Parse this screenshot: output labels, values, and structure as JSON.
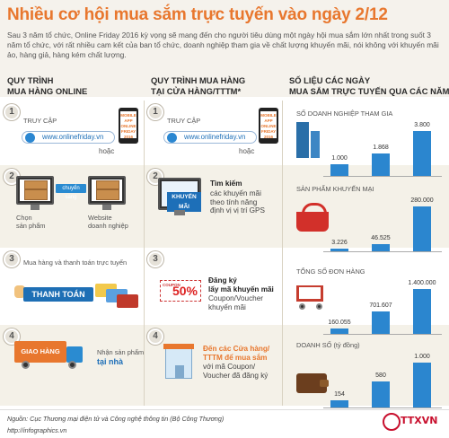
{
  "header": {
    "title": "Nhiều cơ hội mua sắm trực tuyến vào ngày 2/12",
    "intro": "Sau 3 năm tổ chức, Online Friday 2016 kỳ vọng sẽ mang đến cho người tiêu dùng một ngày hội mua sắm lớn nhất trong suốt 3 năm tổ chức, với rất nhiều cam kết của ban tổ chức, doanh nghiệp tham gia về chất lượng khuyến mãi, nói không với khuyến mãi ảo, hàng giả, hàng kém chất lượng."
  },
  "columns": {
    "online": "QUY TRÌNH\nMUA HÀNG ONLINE",
    "store": "QUY TRÌNH MUA HÀNG\nTẠI CỬA HÀNG/TTTM*",
    "stats": "SỐ LIỆU CÁC NGÀY\nMUA SẮM TRỰC TUYẾN QUA CÁC NĂM"
  },
  "steps": {
    "n1": "1",
    "n2": "2",
    "n3": "3",
    "n4": "4",
    "online": {
      "s1_access": "TRUY CẬP",
      "s1_url": "www.onlinefriday.vn",
      "s1_or": "hoặc",
      "s1_phone": "MOBILE APP ONLINE FRIDAY 2016",
      "s2_move": "chuyển sang",
      "s2_left": "Chọn\nsản phẩm",
      "s2_right": "Website\ndoanh nghiệp",
      "s3_label": "Mua hàng và thanh toán trực tuyến",
      "s3_pay": "THANH TOÁN",
      "s4_truck": "GIAO HÀNG",
      "s4_receive": "Nhận sản phẩm",
      "s4_home": "tại nhà"
    },
    "store": {
      "s1_access": "TRUY CẬP",
      "s1_url": "www.onlinefriday.vn",
      "s1_or": "hoặc",
      "s1_phone": "MOBILE APP ONLINE FRIDAY 2016",
      "s2_screen": "KHUYẾN MÃI",
      "s2_head": "Tìm kiếm",
      "s2_body": "các khuyến mãi\ntheo tính năng\nđịnh vị vị trí GPS",
      "s3_coupon": "COUPON",
      "s3_pct": "50%",
      "s3_head": "Đăng ký\nlấy mã khuyến mãi",
      "s3_body": "Coupon/Voucher\nkhuyến mãi",
      "s4_head": "Đến các Cửa hàng/\nTTTM để mua sắm",
      "s4_body": "với mã Coupon/\nVoucher đã đăng ký"
    }
  },
  "chart_data": [
    {
      "type": "bar",
      "title": "SỐ DOANH NGHIỆP THAM GIA",
      "values": [
        1000,
        1868,
        3800
      ],
      "labels": [
        "1.000",
        "1.868",
        "3.800"
      ]
    },
    {
      "type": "bar",
      "title": "SẢN PHẨM KHUYẾN MẠI",
      "values": [
        3226,
        46525,
        280000
      ],
      "labels": [
        "3.226",
        "46.525",
        "280.000"
      ]
    },
    {
      "type": "bar",
      "title": "TỔNG SỐ ĐƠN HÀNG",
      "values": [
        160055,
        701607,
        1400000
      ],
      "labels": [
        "160.055",
        "701.607",
        "1.400.000"
      ]
    },
    {
      "type": "bar",
      "title": "DOANH SỐ (tỷ đồng)",
      "values": [
        154,
        580,
        1000
      ],
      "labels": [
        "154",
        "580",
        "1.000"
      ]
    }
  ],
  "footer": {
    "source": "Nguồn: Cục Thương mại điện tử và Công nghệ thông tin (Bộ Công Thương)",
    "web": "http://infographics.vn",
    "logo": "TTXVN"
  },
  "colors": {
    "accent": "#e8772e",
    "bar": "#2b86cf",
    "bg": "#f4f1e8"
  }
}
